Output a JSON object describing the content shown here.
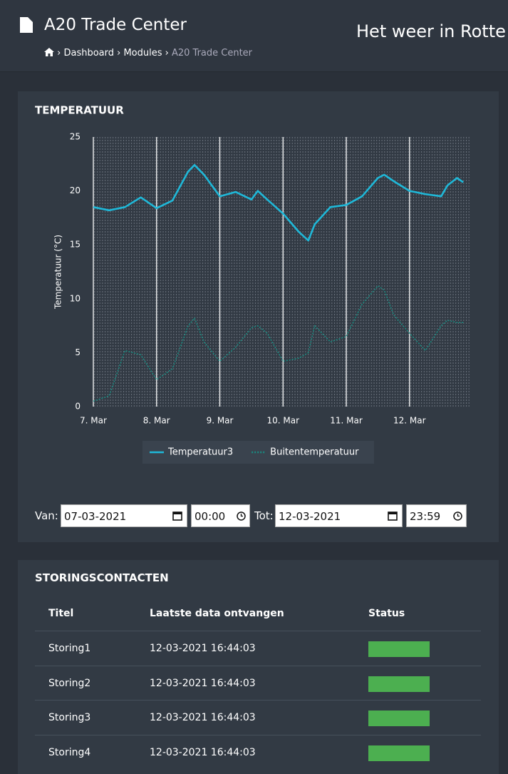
{
  "header": {
    "title": "A20 Trade Center",
    "breadcrumb": [
      "Dashboard",
      "Modules",
      "A20 Trade Center"
    ],
    "page_title": "Het weer in Rotte"
  },
  "chart_data": {
    "type": "line",
    "title": "TEMPERATUUR",
    "ylabel": "Temperatuur (°C)",
    "x": [
      7.0,
      7.25,
      7.5,
      7.75,
      8.0,
      8.25,
      8.5,
      8.6,
      8.75,
      9.0,
      9.25,
      9.5,
      9.6,
      9.75,
      10.0,
      10.25,
      10.4,
      10.5,
      10.75,
      11.0,
      11.25,
      11.5,
      11.6,
      11.75,
      12.0,
      12.25,
      12.5,
      12.6,
      12.75,
      12.85
    ],
    "series": [
      {
        "name": "Temperatuur3",
        "color": "#1fb8d8",
        "style": "solid",
        "values": [
          18.5,
          18.2,
          18.5,
          19.4,
          18.4,
          19.1,
          21.8,
          22.4,
          21.5,
          19.5,
          19.9,
          19.2,
          20.0,
          19.2,
          17.9,
          16.2,
          15.4,
          16.9,
          18.5,
          18.7,
          19.5,
          21.2,
          21.5,
          20.9,
          20.0,
          19.7,
          19.5,
          20.5,
          21.2,
          20.8
        ]
      },
      {
        "name": "Buitentemperatuur",
        "color": "#1a8a80",
        "style": "dotted",
        "values": [
          0.5,
          1.0,
          5.2,
          4.8,
          2.5,
          3.5,
          7.5,
          8.2,
          6.0,
          4.2,
          5.5,
          7.3,
          7.5,
          6.8,
          4.2,
          4.5,
          5.0,
          7.5,
          6.0,
          6.5,
          9.5,
          11.2,
          10.8,
          8.5,
          6.8,
          5.2,
          7.5,
          8.0,
          7.8,
          7.8
        ]
      }
    ],
    "xlim": [
      7,
      12.96
    ],
    "xticks": [
      {
        "value": 7,
        "label": "7. Mar"
      },
      {
        "value": 8,
        "label": "8. Mar"
      },
      {
        "value": 9,
        "label": "9. Mar"
      },
      {
        "value": 10,
        "label": "10. Mar"
      },
      {
        "value": 11,
        "label": "11. Mar"
      },
      {
        "value": 12,
        "label": "12. Mar"
      }
    ],
    "ylim": [
      0,
      25
    ],
    "yticks": [
      0,
      5,
      10,
      15,
      20,
      25
    ],
    "grid": true,
    "legend": "bottom"
  },
  "filter": {
    "from_label": "Van:",
    "from_date": "07-03-2021",
    "from_time": "00:00",
    "to_label": "Tot:",
    "to_date": "12-03-2021",
    "to_time": "23:59"
  },
  "table": {
    "title": "STORINGSCONTACTEN",
    "columns": [
      "Titel",
      "Laatste data ontvangen",
      "Status"
    ],
    "rows": [
      [
        "Storing1",
        "12-03-2021 16:44:03"
      ],
      [
        "Storing2",
        "12-03-2021 16:44:03"
      ],
      [
        "Storing3",
        "12-03-2021 16:44:03"
      ],
      [
        "Storing4",
        "12-03-2021 16:44:03"
      ]
    ],
    "status_color": "#4caf50"
  }
}
